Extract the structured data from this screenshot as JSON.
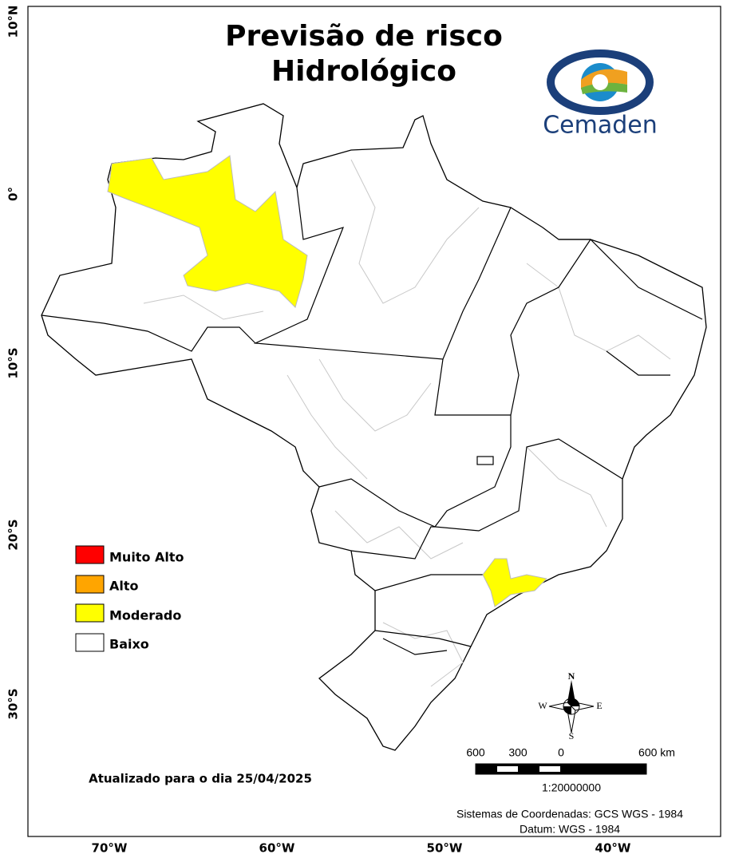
{
  "title": [
    "Previsão de risco",
    "Hidrológico"
  ],
  "logo": "Cemaden",
  "legend": [
    {
      "label": "Muito Alto",
      "color": "#ff0000"
    },
    {
      "label": "Alto",
      "color": "#ffa500"
    },
    {
      "label": "Moderado",
      "color": "#ffff00"
    },
    {
      "label": "Baixo",
      "color": "#ffffff"
    }
  ],
  "latitude_labels": [
    "10°N",
    "0°",
    "10°S",
    "20°S",
    "30°S"
  ],
  "longitude_labels": [
    "70°W",
    "60°W",
    "50°W",
    "40°W"
  ],
  "compass": {
    "north": "N",
    "east": "E",
    "south": "S",
    "west": "W"
  },
  "scale_bar": {
    "labels": [
      "600",
      "300",
      "0",
      "600 km"
    ],
    "ratio": "1:20000000"
  },
  "updated": "Atualizado para o dia 25/04/2025",
  "coordinates": [
    "Sistemas de Coordenadas: GCS WGS - 1984",
    "Datum: WGS - 1984"
  ]
}
